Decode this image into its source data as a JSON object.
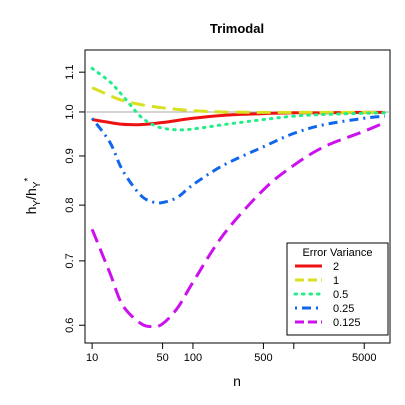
{
  "chart_data": {
    "type": "line",
    "title": "Trimodal",
    "xlabel": "n",
    "ylabel_main": "h",
    "ylabel_sub": "Y",
    "ylabel_slash": "/",
    "ylabel_den_main": "h",
    "ylabel_den_sub": "Y",
    "ylabel_den_sup": "*",
    "x_scale": "log",
    "y_scale": "log",
    "xlim": [
      8.5,
      9000
    ],
    "ylim": [
      0.575,
      1.16
    ],
    "x_ticks": [
      10,
      50,
      100,
      500,
      1000,
      5000
    ],
    "x_tick_labels": [
      "10",
      "50",
      "100",
      "500",
      "",
      "5000"
    ],
    "y_ticks": [
      0.6,
      0.7,
      0.8,
      0.9,
      1.0,
      1.1
    ],
    "y_tick_labels": [
      "0.6",
      "0.7",
      "0.8",
      "0.9",
      "1.0",
      "1.1"
    ],
    "reference_line": 1.0,
    "legend": {
      "title": "Error Variance",
      "position": "bottom-right"
    },
    "series": [
      {
        "name": "2",
        "color": "#ee1111",
        "dash": "solid",
        "x": [
          10,
          15,
          20,
          30,
          50,
          100,
          200,
          500,
          1000,
          2000,
          5000,
          8000
        ],
        "y": [
          0.982,
          0.975,
          0.971,
          0.97,
          0.975,
          0.985,
          0.992,
          0.996,
          0.998,
          0.998,
          0.999,
          0.999
        ]
      },
      {
        "name": "1",
        "color": "#d8e020",
        "dash": "longdash",
        "x": [
          10,
          15,
          20,
          30,
          50,
          100,
          200,
          500,
          1000,
          2000,
          5000,
          8000
        ],
        "y": [
          1.06,
          1.04,
          1.028,
          1.018,
          1.01,
          1.003,
          1.0,
          0.999,
          0.999,
          0.999,
          0.999,
          0.999
        ]
      },
      {
        "name": "0.5",
        "color": "#22ee88",
        "dash": "dotted",
        "x": [
          10,
          15,
          20,
          30,
          40,
          50,
          70,
          100,
          200,
          500,
          1000,
          2000,
          5000,
          8000
        ],
        "y": [
          1.11,
          1.075,
          1.04,
          0.99,
          0.97,
          0.962,
          0.958,
          0.96,
          0.97,
          0.982,
          0.99,
          0.994,
          0.997,
          0.998
        ]
      },
      {
        "name": "0.25",
        "color": "#1166ee",
        "dash": "dotdash",
        "x": [
          10,
          15,
          20,
          30,
          40,
          50,
          70,
          100,
          200,
          500,
          1000,
          2000,
          5000,
          8000
        ],
        "y": [
          0.985,
          0.93,
          0.87,
          0.82,
          0.806,
          0.805,
          0.815,
          0.84,
          0.88,
          0.92,
          0.95,
          0.97,
          0.985,
          0.99
        ]
      },
      {
        "name": "0.125",
        "color": "#cc11ee",
        "dash": "longdash",
        "x": [
          10,
          15,
          20,
          30,
          40,
          50,
          70,
          100,
          200,
          500,
          1000,
          2000,
          5000,
          8000
        ],
        "y": [
          0.755,
          0.68,
          0.63,
          0.603,
          0.598,
          0.602,
          0.625,
          0.665,
          0.745,
          0.83,
          0.88,
          0.92,
          0.955,
          0.975
        ]
      }
    ]
  }
}
